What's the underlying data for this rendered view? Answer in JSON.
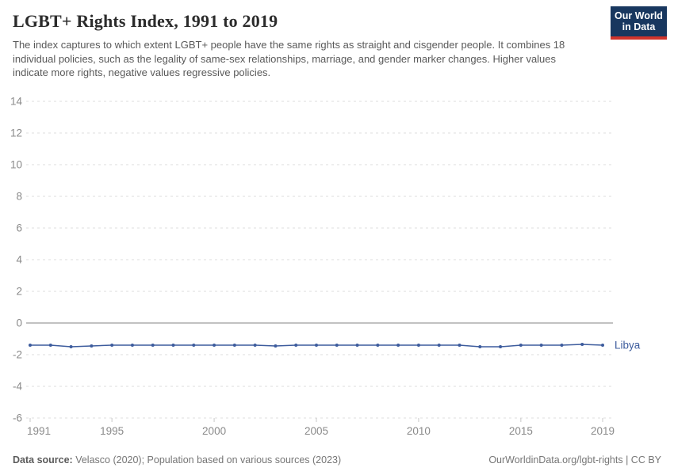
{
  "header": {
    "title": "LGBT+ Rights Index, 1991 to 2019",
    "subtitle": "The index captures to which extent LGBT+ people have the same rights as straight and cisgender people. It combines 18 individual policies, such as the legality of same-sex relationships, marriage, and gender marker changes. Higher values indicate more rights, negative values regressive policies.",
    "logo": {
      "line1": "Our World",
      "line2": "in Data",
      "bg_color": "#18375f",
      "accent_color": "#d0342c"
    }
  },
  "chart_data": {
    "type": "line",
    "title": "LGBT+ Rights Index, 1991 to 2019",
    "xlabel": "",
    "ylabel": "",
    "xlim": [
      1991,
      2019
    ],
    "ylim": [
      -6,
      14
    ],
    "x_ticks": [
      1991,
      1995,
      2000,
      2005,
      2010,
      2015,
      2019
    ],
    "y_ticks": [
      -6,
      -4,
      -2,
      0,
      2,
      4,
      6,
      8,
      10,
      12,
      14
    ],
    "grid": "horizontal-dashed",
    "zero_line": true,
    "legend_position": "end-of-line-label",
    "x": [
      1991,
      1992,
      1993,
      1994,
      1995,
      1996,
      1997,
      1998,
      1999,
      2000,
      2001,
      2002,
      2003,
      2004,
      2005,
      2006,
      2007,
      2008,
      2009,
      2010,
      2011,
      2012,
      2013,
      2014,
      2015,
      2016,
      2017,
      2018,
      2019
    ],
    "series": [
      {
        "name": "Libya",
        "color": "#3d5c9d",
        "values": [
          -1.4,
          -1.4,
          -1.5,
          -1.45,
          -1.4,
          -1.4,
          -1.4,
          -1.4,
          -1.4,
          -1.4,
          -1.4,
          -1.4,
          -1.45,
          -1.4,
          -1.4,
          -1.4,
          -1.4,
          -1.4,
          -1.4,
          -1.4,
          -1.4,
          -1.4,
          -1.5,
          -1.5,
          -1.4,
          -1.4,
          -1.4,
          -1.35,
          -1.4
        ]
      }
    ]
  },
  "colors": {
    "grid": "#dcdcdc",
    "zero_line": "#adadad",
    "tick_label": "#8a8a8a",
    "tick_mark": "#c8c8c8",
    "series_blue": "#3d5c9d"
  },
  "footer": {
    "source_label": "Data source:",
    "source_text": " Velasco (2020); Population based on various sources (2023)",
    "credit": "OurWorldinData.org/lgbt-rights | CC BY"
  }
}
